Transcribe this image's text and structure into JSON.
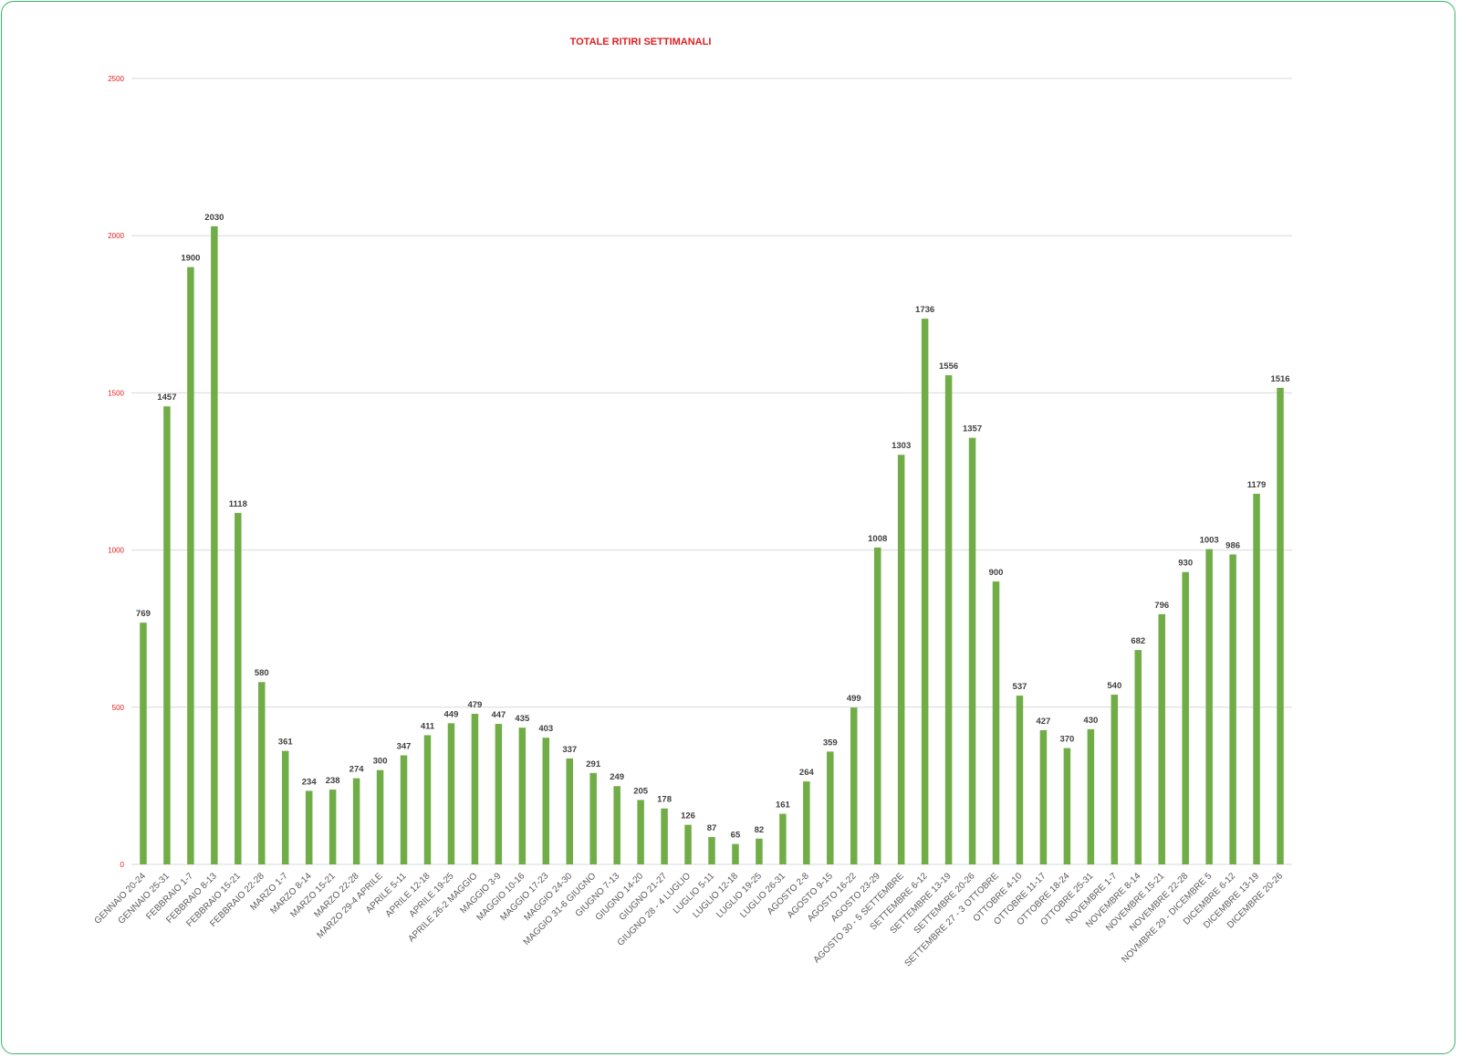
{
  "chart_data": {
    "type": "bar",
    "title": "TOTALE RITIRI SETTIMANALI",
    "xlabel": "",
    "ylabel": "",
    "ylim": [
      0,
      2500
    ],
    "yticks": [
      0,
      500,
      1000,
      1500,
      2000,
      2500
    ],
    "grid": true,
    "legend": "none",
    "colors": {
      "bar": "#70ad47",
      "title": "#e02020",
      "ytick": "#e02020",
      "label": "#404040",
      "xtick": "#595959",
      "grid": "#d9d9d9"
    },
    "categories": [
      "GENNAIO 20-24",
      "GENNAIO 25-31",
      "FEBBRAIO 1-7",
      "FEBBRAIO 8-13",
      "FEBBRAIO 15-21",
      "FEBBRAIO 22-28",
      "MARZO 1-7",
      "MARZO 8-14",
      "MARZO 15-21",
      "MARZO 22-28",
      "MARZO 29-4 APRILE",
      "APRILE 5-11",
      "APRILE 12-18",
      "APRILE 19-25",
      "APRILE 26-2 MAGGIO",
      "MAGGIO 3-9",
      "MAGGIO 10-16",
      "MAGGIO 17-23",
      "MAGGIO 24-30",
      "MAGGIO 31-6 GIUGNO",
      "GIUGNO 7-13",
      "GIUGNO 14-20",
      "GIUGNO 21-27",
      "GIUGNO 28 - 4 LUGLIO",
      "LUGLIO 5-11",
      "LUGLIO 12-18",
      "LUGLIO 19-25",
      "LUGLIO 26-31",
      "AGOSTO 2-8",
      "AGOSTO 9-15",
      "AGOSTO 16-22",
      "AGOSTO 23-29",
      "AGOSTO 30 - 5 SETTEMBRE",
      "SETTEMBRE 6-12",
      "SETTEMBRE 13-19",
      "SETTEMBRE 20-26",
      "SETTEMBRE 27 - 3 OTTOBRE",
      "OTTOBRE 4-10",
      "OTTOBRE 11-17",
      "OTTOBRE 18-24",
      "OTTOBRE 25-31",
      "NOVEMBRE 1-7",
      "NOVEMBRE 8-14",
      "NOVEMBRE 15-21",
      "NOVEMBRE 22-28",
      "NOVMBRE 29 - DICEMBRE 5",
      "DICEMBRE 6-12",
      "DICEMBRE 13-19",
      "DICEMBRE 20-26"
    ],
    "values": [
      769,
      1457,
      1900,
      2030,
      1118,
      580,
      361,
      234,
      238,
      274,
      300,
      347,
      411,
      449,
      479,
      447,
      435,
      403,
      337,
      291,
      249,
      205,
      178,
      126,
      87,
      65,
      82,
      161,
      264,
      359,
      499,
      1008,
      1303,
      1736,
      1556,
      1357,
      900,
      537,
      427,
      370,
      430,
      540,
      682,
      796,
      930,
      1003,
      986,
      1179,
      1516
    ]
  }
}
